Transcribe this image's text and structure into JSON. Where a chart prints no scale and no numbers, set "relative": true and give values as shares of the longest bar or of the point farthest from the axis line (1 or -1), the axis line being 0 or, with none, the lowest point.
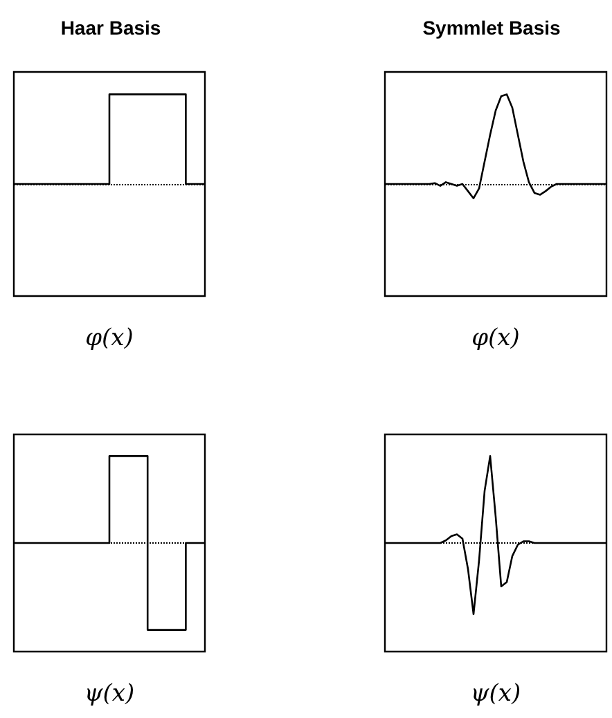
{
  "chart_data": [
    {
      "type": "step",
      "title": "Haar Basis",
      "xlabel": "φ(x)",
      "relative": true,
      "categories": [
        null,
        null,
        null,
        null,
        null,
        null,
        null,
        null,
        null,
        null,
        null,
        null,
        null,
        null,
        null,
        null,
        null,
        null,
        null,
        null,
        null
      ],
      "series": [
        {
          "color": "#000000",
          "values": [
            0,
            0,
            0,
            0,
            0,
            0,
            0,
            0,
            0,
            0,
            1,
            1,
            1,
            1,
            1,
            1,
            1,
            1,
            0,
            0,
            0
          ]
        }
      ],
      "ref_lines": [
        {
          "axis": "y",
          "value": 0,
          "line_style": "dotted"
        }
      ]
    },
    {
      "type": "line",
      "title": "Symmlet Basis",
      "xlabel": "φ(x)",
      "relative": true,
      "categories": [
        null,
        null,
        null,
        null,
        null,
        null,
        null,
        null,
        null,
        null,
        null,
        null,
        null,
        null,
        null,
        null,
        null,
        null,
        null,
        null,
        null,
        null,
        null,
        null,
        null,
        null,
        null,
        null,
        null,
        null,
        null,
        null,
        null,
        null,
        null,
        null,
        null,
        null,
        null,
        null,
        null
      ],
      "series": [
        {
          "color": "#000000",
          "values": [
            0,
            0,
            0,
            0,
            0,
            0,
            0,
            0,
            0,
            0.01,
            -0.02,
            0.02,
            0,
            -0.02,
            0,
            -0.08,
            -0.16,
            -0.05,
            0.25,
            0.55,
            0.82,
            0.98,
            1,
            0.85,
            0.55,
            0.25,
            0.02,
            -0.1,
            -0.12,
            -0.08,
            -0.03,
            0,
            0,
            0,
            0,
            0,
            0,
            0,
            0,
            0,
            0
          ]
        }
      ],
      "ref_lines": [
        {
          "axis": "y",
          "value": 0,
          "line_style": "dotted"
        }
      ]
    },
    {
      "type": "step",
      "xlabel": "ψ(x)",
      "relative": true,
      "categories": [
        null,
        null,
        null,
        null,
        null,
        null,
        null,
        null,
        null,
        null,
        null,
        null,
        null,
        null,
        null,
        null,
        null,
        null,
        null,
        null,
        null
      ],
      "series": [
        {
          "color": "#000000",
          "values": [
            0,
            0,
            0,
            0,
            0,
            0,
            0,
            0,
            0,
            0,
            1,
            1,
            1,
            1,
            -1,
            -1,
            -1,
            -1,
            0,
            0,
            0
          ]
        }
      ],
      "ref_lines": [
        {
          "axis": "y",
          "value": 0,
          "line_style": "dotted"
        }
      ]
    },
    {
      "type": "line",
      "xlabel": "ψ(x)",
      "relative": true,
      "categories": [
        null,
        null,
        null,
        null,
        null,
        null,
        null,
        null,
        null,
        null,
        null,
        null,
        null,
        null,
        null,
        null,
        null,
        null,
        null,
        null,
        null,
        null,
        null,
        null,
        null,
        null,
        null,
        null,
        null,
        null,
        null,
        null,
        null,
        null,
        null,
        null,
        null,
        null,
        null,
        null,
        null
      ],
      "series": [
        {
          "color": "#000000",
          "values": [
            0,
            0,
            0,
            0,
            0,
            0,
            0,
            0,
            0,
            0,
            0,
            0.03,
            0.08,
            0.1,
            0.05,
            -0.3,
            -0.82,
            -0.2,
            0.6,
            1,
            0.3,
            -0.5,
            -0.45,
            -0.15,
            -0.02,
            0.02,
            0.02,
            0,
            0,
            0,
            0,
            0,
            0,
            0,
            0,
            0,
            0,
            0,
            0,
            0,
            0
          ]
        }
      ],
      "ref_lines": [
        {
          "axis": "y",
          "value": 0,
          "line_style": "dotted"
        }
      ]
    }
  ]
}
